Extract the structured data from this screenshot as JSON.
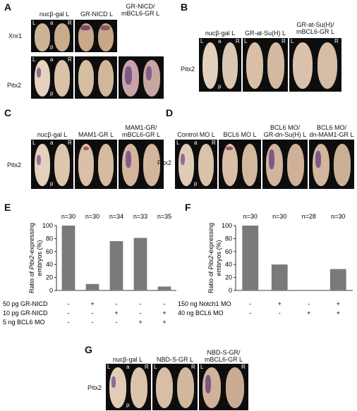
{
  "panels": {
    "A": {
      "label": "A",
      "conditions": [
        "nucβ-gal L",
        "GR-NICD L",
        "GR-NICD/\nmBCL6-GR L"
      ],
      "rows": [
        "Xnr1",
        "Pitx2"
      ],
      "orient": {
        "L": "L",
        "R": "R",
        "a": "a",
        "p": "p"
      }
    },
    "B": {
      "label": "B",
      "conditions": [
        "nucβ-gal L",
        "GR-at-Su(H) L",
        "GR-at-Su(H)/\nmBCL6-GR L"
      ],
      "rows": [
        "Pitx2"
      ]
    },
    "C": {
      "label": "C",
      "conditions": [
        "nucβ-gal L",
        "MAM1-GR L",
        "MAM1-GR/\nmBCL6-GR L"
      ],
      "rows": [
        "Pitx2"
      ]
    },
    "D": {
      "label": "D",
      "conditions": [
        "Control MO L",
        "BCL6 MO L",
        "BCL6 MO/\nGR-dn-Su(H) L",
        "BCL6 MO/\ndn-MAM1-GR L"
      ],
      "rows": [
        "Pitx2"
      ]
    },
    "E": {
      "label": "E"
    },
    "F": {
      "label": "F"
    },
    "G": {
      "label": "G",
      "conditions": [
        "nucβ-gal L",
        "NBD-S-GR L",
        "NBD-S-GR/\nmBCL6-GR L"
      ],
      "rows": [
        "Pitx2"
      ]
    }
  },
  "chart_data": [
    {
      "type": "bar",
      "panel": "E",
      "ylabel": "Ratio of Pitx2-expressing embryos (%)",
      "ylim": [
        0,
        100
      ],
      "yticks": [
        0,
        20,
        40,
        60,
        80,
        100
      ],
      "n_labels": [
        "n=30",
        "n=30",
        "n=34",
        "n=33",
        "n=35"
      ],
      "values": [
        100,
        10,
        76,
        81,
        6
      ],
      "color": "#7a7a7a",
      "table": [
        {
          "label": "50 pg GR-NICD",
          "marks": [
            "-",
            "+",
            "-",
            "-",
            "-"
          ]
        },
        {
          "label": "10 pg GR-NICD",
          "marks": [
            "-",
            "-",
            "+",
            "-",
            "+"
          ]
        },
        {
          "label": "5 ng BCL6 MO",
          "marks": [
            "-",
            "-",
            "-",
            "+",
            "+"
          ]
        }
      ]
    },
    {
      "type": "bar",
      "panel": "F",
      "ylabel": "Ratio of Pitx2-expressing embryos (%)",
      "ylim": [
        0,
        100
      ],
      "yticks": [
        0,
        20,
        40,
        60,
        80,
        100
      ],
      "n_labels": [
        "n=30",
        "n=30",
        "n=28",
        "n=30"
      ],
      "values": [
        100,
        40,
        0,
        33
      ],
      "color": "#7a7a7a",
      "table": [
        {
          "label": "150 ng Notch1 MO",
          "marks": [
            "-",
            "+",
            "-",
            "+"
          ]
        },
        {
          "label": "40 ng  BCL6 MO",
          "marks": [
            "-",
            "-",
            "+",
            "+"
          ]
        }
      ]
    }
  ]
}
